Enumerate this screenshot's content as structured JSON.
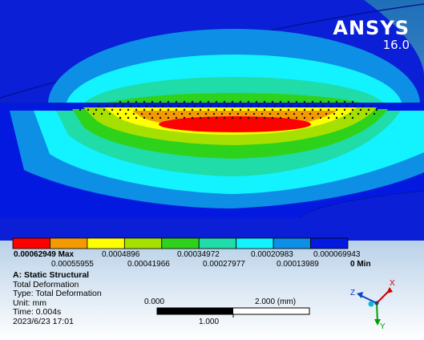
{
  "brand": {
    "name": "ANSYS",
    "version": "16.0"
  },
  "colors": {
    "background_top": "#1f6fb8",
    "background_bottom": "#ffffff",
    "base_blue": "#0a1fd6",
    "contour_bands": [
      "#ff0000",
      "#f39a00",
      "#ffff00",
      "#a6e000",
      "#2fd21b",
      "#1fdca9",
      "#13f2ff",
      "#0c8fe5",
      "#0419e0"
    ]
  },
  "legend": {
    "max_value": "0.00062949 Max",
    "min_value": "0 Min",
    "top_row": [
      "0.0004896",
      "0.00034972",
      "0.00020983",
      "0.000069943"
    ],
    "bottom_row": [
      "0.00055955",
      "0.00041966",
      "0.00027977",
      "0.00013989"
    ]
  },
  "info": {
    "analysis": "A: Static Structural",
    "result": "Total Deformation",
    "type": "Type: Total Deformation",
    "unit": "Unit: mm",
    "time": "Time: 0.004s",
    "date": "2023/6/23 17:01"
  },
  "scale_bar": {
    "start": "0.000",
    "end": "2.000 (mm)",
    "mid": "1.000"
  },
  "triad": {
    "x": "X",
    "y": "Y",
    "z": "Z"
  }
}
